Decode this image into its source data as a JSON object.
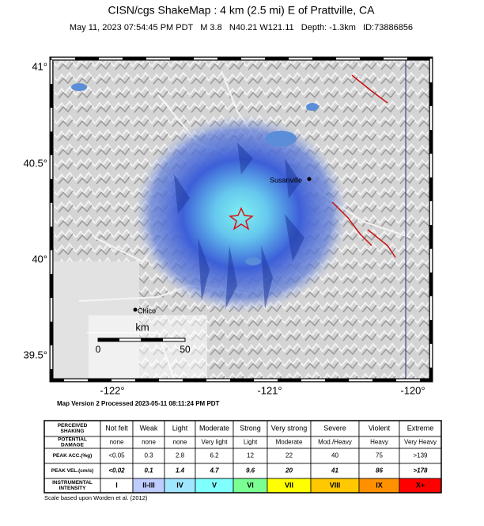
{
  "header": {
    "title": "CISN/cgs ShakeMap : 4 km (2.5 mi) E of Prattville, CA",
    "subtitle": "May 11, 2023 07:54:45 PM PDT   M 3.8   N40.21 W121.11   Depth: -1.3km   ID:73886856"
  },
  "map": {
    "lat_labels": [
      "41°",
      "40.5°",
      "40°",
      "39.5°"
    ],
    "lon_labels": [
      "-122°",
      "-121°",
      "-120°"
    ],
    "places": [
      "Susanville",
      "Chico"
    ],
    "scale": {
      "unit": "km",
      "start": "0",
      "end": "50"
    },
    "version": "Map Version 2 Processed 2023-05-11 08:11:24 PM PDT"
  },
  "table": {
    "rows": [
      [
        [
          "PERCEIVED",
          "SHAKING"
        ],
        "Not felt",
        "Weak",
        "Light",
        "Moderate",
        "Strong",
        "Very strong",
        "Severe",
        "Violent",
        "Extreme"
      ],
      [
        [
          "POTENTIAL",
          "DAMAGE"
        ],
        "none",
        "none",
        "none",
        "Very light",
        "Light",
        "Moderate",
        "Mod./Heavy",
        "Heavy",
        "Very Heavy"
      ],
      [
        [
          "PEAK ACC.(%g)"
        ],
        "<0.05",
        "0.3",
        "2.8",
        "6.2",
        "12",
        "22",
        "40",
        "75",
        ">139"
      ],
      [
        [
          "PEAK VEL.(cm/s)"
        ],
        "<0.02",
        "0.1",
        "1.4",
        "4.7",
        "9.6",
        "20",
        "41",
        "86",
        ">178"
      ],
      [
        [
          "INSTRUMENTAL",
          "INTENSITY"
        ],
        "I",
        "II-III",
        "IV",
        "V",
        "VI",
        "VII",
        "VIII",
        "IX",
        "X+"
      ]
    ],
    "intensity_colors": [
      "#ffffff",
      "#bfccff",
      "#a0e6ff",
      "#80ffff",
      "#7aff93",
      "#ffff00",
      "#ffc800",
      "#ff9100",
      "#ff0000"
    ]
  },
  "footer": "Scale based upon Worden et al. (2012)"
}
